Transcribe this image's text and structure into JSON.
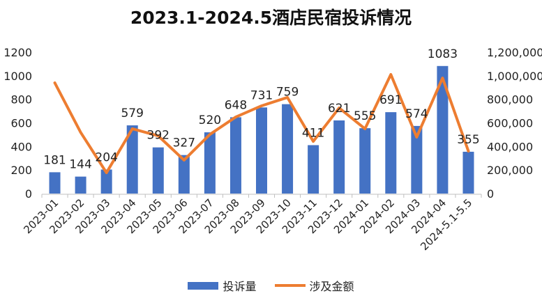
{
  "chart_data": {
    "type": "bar",
    "title": "2023.1-2024.5酒店民宿投诉情况",
    "categories": [
      "2023-01",
      "2023-02",
      "2023-03",
      "2023-04",
      "2023-05",
      "2023-06",
      "2023-07",
      "2023-08",
      "2023-09",
      "2023-10",
      "2023-11",
      "2023-12",
      "2024-01",
      "2024-02",
      "2024-03",
      "2024-04",
      "2024-5.1-5.5"
    ],
    "series": [
      {
        "name": "投诉量",
        "type": "bar",
        "axis": "left",
        "color": "#4472C4",
        "values": [
          181,
          144,
          204,
          579,
          392,
          327,
          520,
          648,
          731,
          759,
          411,
          621,
          555,
          691,
          574,
          1083,
          355
        ]
      },
      {
        "name": "涉及金额",
        "type": "line",
        "axis": "right",
        "color": "#ED7D31",
        "values": [
          940000,
          520000,
          177000,
          550000,
          490000,
          284000,
          502000,
          650000,
          745000,
          816000,
          443000,
          727000,
          550000,
          1011000,
          479000,
          981000,
          360000
        ]
      }
    ],
    "left_axis": {
      "ylim": [
        0,
        1200
      ],
      "ticks": [
        "0",
        "200",
        "400",
        "600",
        "800",
        "1000",
        "1200"
      ]
    },
    "right_axis": {
      "ylim": [
        0,
        1200000
      ],
      "ticks": [
        "0",
        "200,000",
        "400,000",
        "600,000",
        "800,000",
        "1,000,000",
        "1,200,000"
      ]
    },
    "legend_position": "bottom",
    "grid": false
  }
}
